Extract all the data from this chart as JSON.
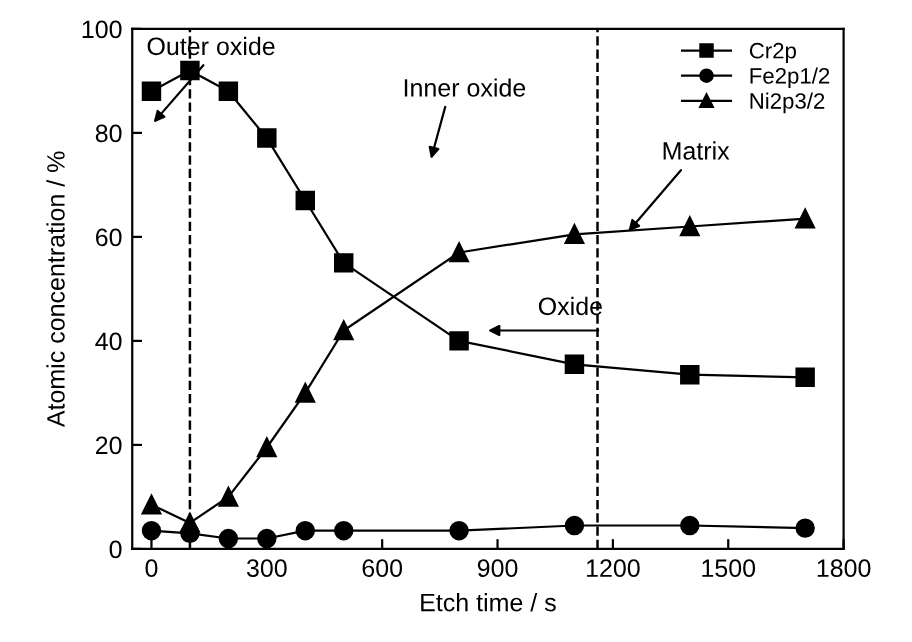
{
  "chart_data": {
    "type": "line",
    "xlabel": "Etch time / s",
    "ylabel": "Atomic concentration / %",
    "x": [
      0,
      100,
      200,
      300,
      400,
      500,
      800,
      1100,
      1400,
      1700
    ],
    "series": [
      {
        "name": "Cr2p",
        "color": "#000000",
        "marker": "square",
        "values": [
          88,
          92,
          88,
          79,
          67,
          55,
          40,
          35.5,
          33.5,
          33
        ]
      },
      {
        "name": "Fe2p1/2",
        "color": "#000000",
        "marker": "circle",
        "values": [
          3.5,
          3,
          2,
          2,
          3.5,
          3.5,
          3.5,
          4.5,
          4.5,
          4
        ]
      },
      {
        "name": "Ni2p3/2",
        "color": "#000000",
        "marker": "triangle",
        "values": [
          8.5,
          5,
          10,
          19.5,
          30,
          42,
          57,
          60.5,
          62,
          63.5
        ]
      }
    ],
    "xlim": [
      -50,
      1800
    ],
    "ylim": [
      0,
      100
    ],
    "xticks": [
      0,
      300,
      600,
      900,
      1200,
      1500,
      1800
    ],
    "yticks": [
      0,
      20,
      40,
      60,
      80,
      100
    ],
    "ref_lines": [
      {
        "axis": "x",
        "value": 100,
        "line_style": "dashed",
        "color": "#000000"
      },
      {
        "axis": "x",
        "value": 1160,
        "line_style": "dashed",
        "color": "#000000"
      }
    ],
    "annotations": [
      "Outer oxide",
      "Inner oxide",
      {
        "text": "Matrix",
        "x": 1240,
        "y": 61
      },
      "Oxide"
    ],
    "legend": "top right",
    "grid": false
  }
}
